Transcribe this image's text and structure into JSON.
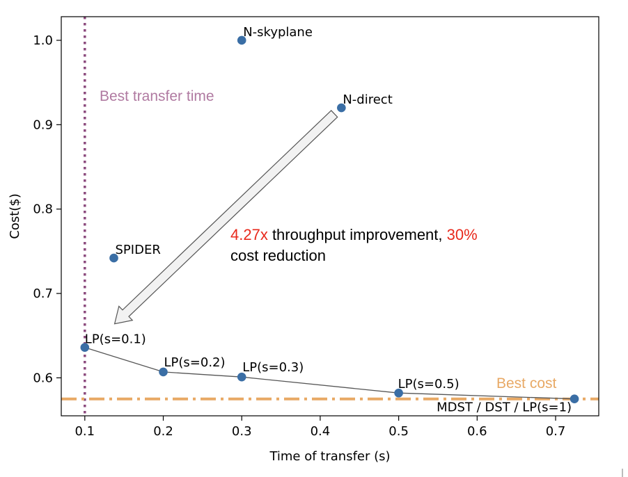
{
  "chart_data": {
    "type": "scatter",
    "xlabel": "Time of transfer (s)",
    "ylabel": "Cost($)",
    "xlim": [
      0.07,
      0.755
    ],
    "ylim": [
      0.555,
      1.028
    ],
    "xticks": [
      0.1,
      0.2,
      0.3,
      0.4,
      0.5,
      0.6,
      0.7
    ],
    "yticks": [
      0.6,
      0.7,
      0.8,
      0.9,
      1.0
    ],
    "grid": false,
    "points": [
      {
        "label": "N-skyplane",
        "x": 0.3,
        "y": 1.0
      },
      {
        "label": "N-direct",
        "x": 0.427,
        "y": 0.92
      },
      {
        "label": "SPIDER",
        "x": 0.137,
        "y": 0.742
      },
      {
        "label": "LP(s=0.1)",
        "x": 0.1,
        "y": 0.636
      },
      {
        "label": "LP(s=0.2)",
        "x": 0.2,
        "y": 0.607
      },
      {
        "label": "LP(s=0.3)",
        "x": 0.3,
        "y": 0.601
      },
      {
        "label": "LP(s=0.5)",
        "x": 0.5,
        "y": 0.582
      },
      {
        "label": "MDST / DST / LP(s=1)",
        "x": 0.724,
        "y": 0.575
      }
    ],
    "pareto_line": [
      [
        0.1,
        0.636
      ],
      [
        0.2,
        0.607
      ],
      [
        0.3,
        0.601
      ],
      [
        0.5,
        0.582
      ],
      [
        0.724,
        0.575
      ]
    ],
    "reference_lines": {
      "best_time": {
        "label": "Best transfer time",
        "x": 0.1,
        "color": "#8b4a7d"
      },
      "best_cost": {
        "label": "Best cost",
        "y": 0.575,
        "color": "#e8a965"
      }
    },
    "annotation": {
      "part1_red": "4.27x",
      "part2": " throughput improvement, ",
      "part3_red": "30%",
      "line2": "cost reduction",
      "highlight_color": "#e8291c",
      "arrow_from": {
        "x": 0.418,
        "y": 0.913
      },
      "arrow_to": {
        "x": 0.138,
        "y": 0.664
      }
    },
    "point_color": "#3a6ea5"
  }
}
